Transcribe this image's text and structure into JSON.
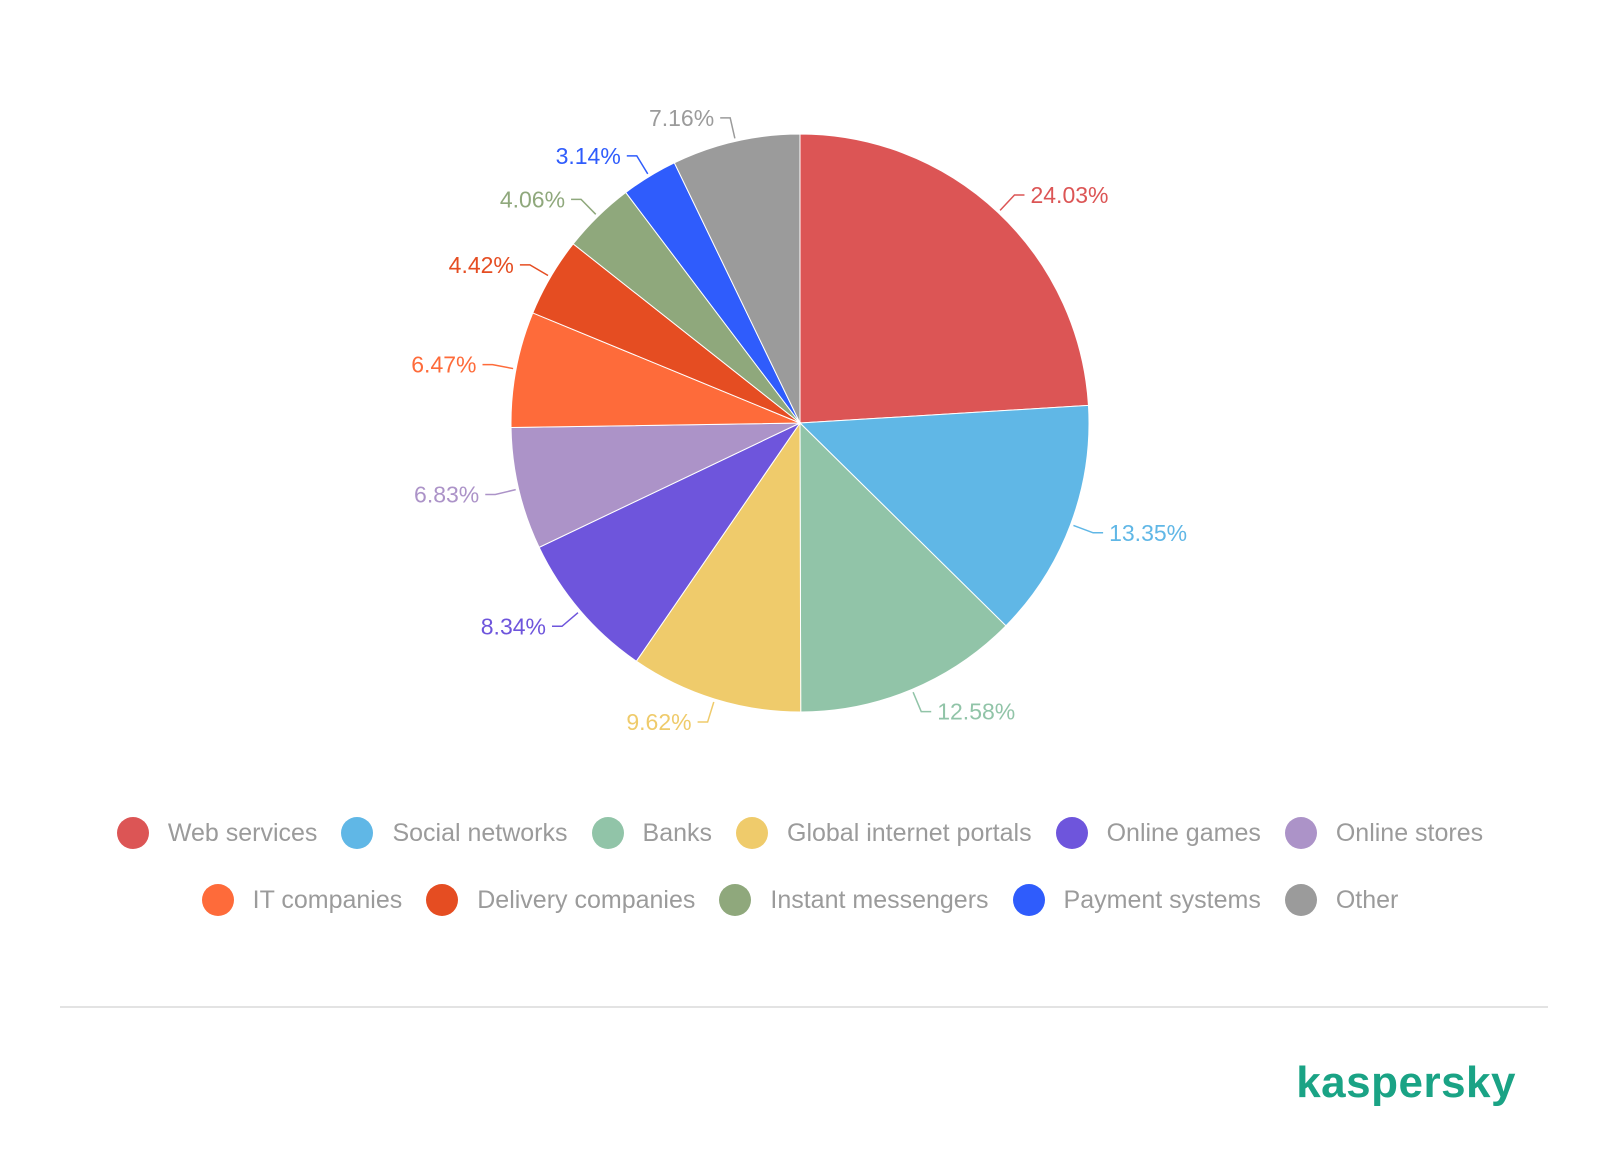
{
  "chart_data": {
    "type": "pie",
    "start_angle_deg": 0,
    "direction": "clockwise",
    "categories": [
      "Web services",
      "Social networks",
      "Banks",
      "Global internet portals",
      "Online games",
      "Online stores",
      "IT companies",
      "Delivery companies",
      "Instant messengers",
      "Payment systems",
      "Other"
    ],
    "values": [
      24.03,
      13.35,
      12.58,
      9.62,
      8.34,
      6.83,
      6.47,
      4.42,
      4.06,
      3.14,
      7.16
    ],
    "labels": [
      "24.03%",
      "13.35%",
      "12.58%",
      "9.62%",
      "8.34%",
      "6.83%",
      "6.47%",
      "4.42%",
      "4.06%",
      "3.14%",
      "7.16%"
    ],
    "colors": [
      "#dc5555",
      "#60b7e6",
      "#91c4a8",
      "#efcb6b",
      "#6e55dc",
      "#ac93c8",
      "#fe6b3a",
      "#e54d22",
      "#8fa87c",
      "#2f5cfc",
      "#9b9b9b"
    ],
    "legend_position": "bottom",
    "label_placement": "outside-with-leader-lines"
  },
  "logo": {
    "text": "kaspersky",
    "color": "#1aa385"
  }
}
